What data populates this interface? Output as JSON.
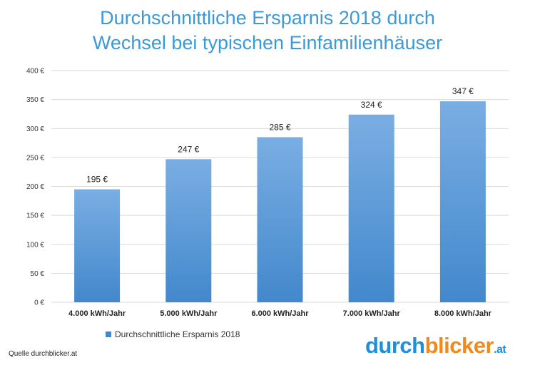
{
  "title": {
    "line1": "Durchschnittliche Ersparnis 2018 durch",
    "line2": "Wechsel bei typischen Einfamilienhäuser"
  },
  "chart_data": {
    "type": "bar",
    "categories": [
      "4.000 kWh/Jahr",
      "5.000 kWh/Jahr",
      "6.000 kWh/Jahr",
      "7.000 kWh/Jahr",
      "8.000 kWh/Jahr"
    ],
    "series": [
      {
        "name": "Durchschnittliche Ersparnis 2018",
        "values": [
          195,
          247,
          285,
          324,
          347
        ],
        "data_labels": [
          "195 €",
          "247 €",
          "285 €",
          "324 €",
          "347 €"
        ]
      }
    ],
    "ylim": [
      0,
      400
    ],
    "yticks": [
      0,
      50,
      100,
      150,
      200,
      250,
      300,
      350,
      400
    ],
    "ytick_labels": [
      "0 €",
      "50 €",
      "100 €",
      "150 €",
      "200 €",
      "250 €",
      "300 €",
      "350 €",
      "400 €"
    ],
    "grid": true,
    "legend_position": "bottom-left",
    "bar_color_top": "#7aaee3",
    "bar_color_bottom": "#4288cc",
    "grid_color": "#d9d9d9"
  },
  "source": "Quelle durchblicker.at",
  "logo": {
    "part1": "durch",
    "part2": "blicker",
    "part3": ".at"
  },
  "colors": {
    "title": "#3a9ad9",
    "logo_blue": "#1e8fdb",
    "logo_orange": "#f08a1e"
  }
}
